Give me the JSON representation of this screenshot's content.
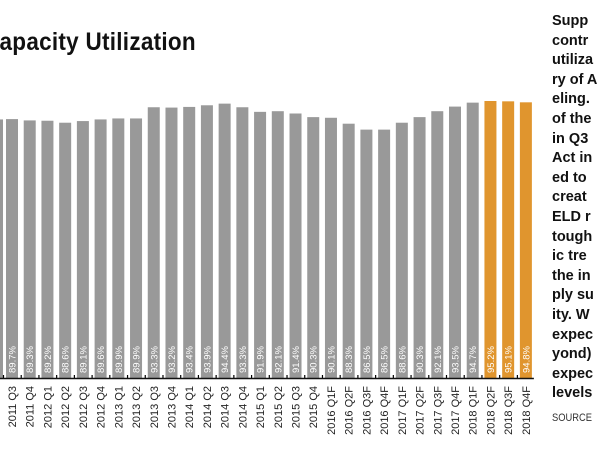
{
  "chart_data": {
    "type": "bar",
    "title": "Capacity Utilization",
    "xlabel": "",
    "ylabel": "",
    "grid": false,
    "categories": [
      "2011 Q3",
      "2011 Q4",
      "2012 Q1",
      "2012 Q2",
      "2012 Q3",
      "2012 Q4",
      "2013 Q1",
      "2013 Q2",
      "2013 Q3",
      "2013 Q4",
      "2014 Q1",
      "2014 Q2",
      "2014 Q3",
      "2014 Q4",
      "2015 Q1",
      "2015 Q2",
      "2015 Q3",
      "2015 Q4",
      "2016 Q1F",
      "2016 Q2F",
      "2016 Q3F",
      "2016 Q4F",
      "2017 Q1F",
      "2017 Q2F",
      "2017 Q3F",
      "2017 Q4F",
      "2018 Q1F",
      "2018 Q2F",
      "2018 Q3F",
      "2018 Q4F"
    ],
    "values": [
      89.7,
      89.3,
      89.2,
      88.6,
      89.1,
      89.6,
      89.9,
      89.9,
      93.3,
      93.2,
      93.4,
      93.9,
      94.4,
      93.3,
      91.9,
      92.1,
      91.4,
      90.3,
      90.1,
      88.3,
      86.5,
      86.5,
      88.6,
      90.3,
      92.1,
      93.5,
      94.7,
      95.2,
      95.1,
      94.8
    ],
    "highlight_from_index": 27,
    "colors": {
      "default": "#999999",
      "highlight": "#E0952E"
    },
    "ylim": [
      11,
      96.5
    ]
  },
  "sidebar": {
    "lines": [
      "Supp",
      "contr",
      "utiliza",
      "ry of A",
      "eling.",
      "of the",
      "in Q3",
      "Act in",
      "ed to",
      "creat",
      "ELD r",
      "tough",
      "ic tre",
      "the in",
      "ply su",
      "ity. W",
      "expec",
      "yond)",
      "expec",
      "levels"
    ],
    "source": "SOURCE"
  }
}
